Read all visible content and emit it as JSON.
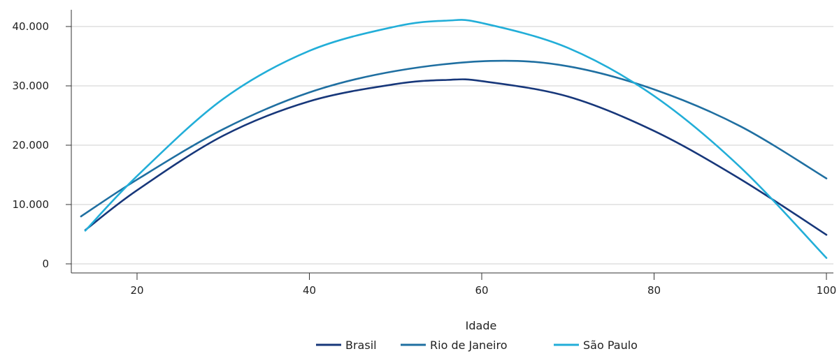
{
  "chart_data": {
    "type": "line",
    "title": "",
    "xlabel": "Idade",
    "ylabel": "",
    "xlim": [
      13,
      100.5
    ],
    "ylim": [
      -1600,
      43200
    ],
    "x_ticks": [
      {
        "value": 20,
        "label": "20"
      },
      {
        "value": 40,
        "label": "40"
      },
      {
        "value": 60,
        "label": "60"
      },
      {
        "value": 80,
        "label": "80"
      },
      {
        "value": 100,
        "label": "100"
      }
    ],
    "y_ticks": [
      {
        "value": 0,
        "label": "0"
      },
      {
        "value": 10000,
        "label": "10.000"
      },
      {
        "value": 20000,
        "label": "20.000"
      },
      {
        "value": 30000,
        "label": "30.000"
      },
      {
        "value": 40000,
        "label": "40.000"
      }
    ],
    "grid": "horizontal",
    "legend_position": "bottom",
    "series": [
      {
        "name": "Brasil",
        "color": "#17377a",
        "x": [
          14,
          20,
          30,
          40,
          50,
          56,
          60,
          70,
          80,
          90,
          100
        ],
        "y": [
          5700,
          12400,
          21600,
          27400,
          30300,
          31000,
          30800,
          28200,
          22400,
          14300,
          4900
        ]
      },
      {
        "name": "Rio de Janeiro",
        "color": "#1f6fa1",
        "x": [
          13.5,
          20,
          30,
          40,
          50,
          61,
          70,
          80,
          90,
          100
        ],
        "y": [
          8000,
          14200,
          22700,
          28900,
          32500,
          34200,
          33300,
          29400,
          23200,
          14400
        ]
      },
      {
        "name": "São Paulo",
        "color": "#22aed8",
        "x": [
          14,
          20,
          30,
          40,
          50,
          56,
          60,
          70,
          80,
          90,
          100
        ],
        "y": [
          5600,
          14800,
          27800,
          35900,
          40000,
          41000,
          40600,
          36400,
          28300,
          16300,
          1000
        ]
      }
    ]
  }
}
